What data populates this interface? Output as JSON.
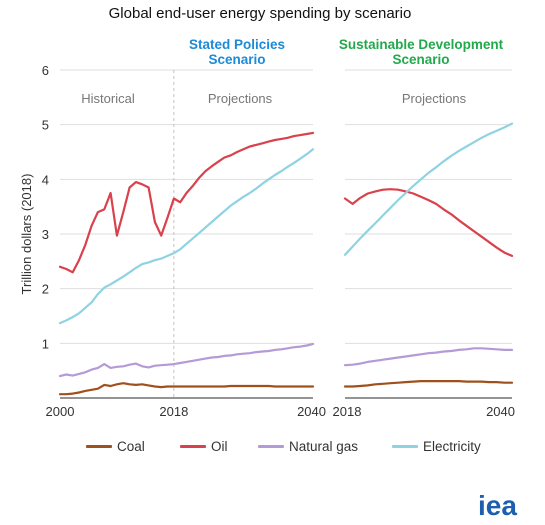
{
  "title": "Global end-user energy spending by scenario",
  "logo_text": "iea",
  "colors": {
    "coal": "#a0501c",
    "oil": "#d9414c",
    "natural_gas": "#b49ad6",
    "electricity": "#8fd3e3",
    "stated_policies": "#1c8ad6",
    "sustainable_development": "#21a94b",
    "logo": "#1d5fae"
  },
  "chart_data": [
    {
      "type": "line",
      "title": "Stated Policies Scenario",
      "ylabel": "Trillion dollars (2018)",
      "xlabel": "",
      "x_ticks": [
        "2000",
        "2018",
        "2040"
      ],
      "y_ticks": [
        "1",
        "2",
        "3",
        "4",
        "5",
        "6"
      ],
      "ylim": [
        0,
        6
      ],
      "xlim": [
        2000,
        2040
      ],
      "grid": "horizontal",
      "annotations": [
        "Historical",
        "Projections"
      ],
      "divider_x": 2018,
      "series": [
        {
          "name": "Coal",
          "x": [
            2000,
            2001,
            2002,
            2003,
            2004,
            2005,
            2006,
            2007,
            2008,
            2009,
            2010,
            2011,
            2012,
            2013,
            2014,
            2015,
            2016,
            2017,
            2018,
            2019,
            2020,
            2021,
            2022,
            2023,
            2024,
            2025,
            2026,
            2027,
            2028,
            2029,
            2030,
            2031,
            2032,
            2033,
            2034,
            2035,
            2036,
            2037,
            2038,
            2039,
            2040
          ],
          "values": [
            0.07,
            0.07,
            0.08,
            0.1,
            0.13,
            0.15,
            0.17,
            0.24,
            0.22,
            0.25,
            0.27,
            0.25,
            0.24,
            0.25,
            0.23,
            0.21,
            0.2,
            0.21,
            0.21,
            0.21,
            0.21,
            0.21,
            0.21,
            0.21,
            0.21,
            0.21,
            0.21,
            0.22,
            0.22,
            0.22,
            0.22,
            0.22,
            0.22,
            0.22,
            0.21,
            0.21,
            0.21,
            0.21,
            0.21,
            0.21,
            0.21
          ]
        },
        {
          "name": "Oil",
          "x": [
            2000,
            2001,
            2002,
            2003,
            2004,
            2005,
            2006,
            2007,
            2008,
            2009,
            2010,
            2011,
            2012,
            2013,
            2014,
            2015,
            2016,
            2017,
            2018,
            2019,
            2020,
            2021,
            2022,
            2023,
            2024,
            2025,
            2026,
            2027,
            2028,
            2029,
            2030,
            2031,
            2032,
            2033,
            2034,
            2035,
            2036,
            2037,
            2038,
            2039,
            2040
          ],
          "values": [
            2.4,
            2.36,
            2.3,
            2.52,
            2.8,
            3.15,
            3.4,
            3.45,
            3.75,
            2.97,
            3.4,
            3.85,
            3.95,
            3.91,
            3.85,
            3.22,
            2.97,
            3.3,
            3.65,
            3.58,
            3.75,
            3.88,
            4.03,
            4.15,
            4.24,
            4.32,
            4.4,
            4.44,
            4.5,
            4.55,
            4.6,
            4.63,
            4.66,
            4.69,
            4.72,
            4.74,
            4.76,
            4.79,
            4.81,
            4.83,
            4.85
          ]
        },
        {
          "name": "Natural gas",
          "x": [
            2000,
            2001,
            2002,
            2003,
            2004,
            2005,
            2006,
            2007,
            2008,
            2009,
            2010,
            2011,
            2012,
            2013,
            2014,
            2015,
            2016,
            2017,
            2018,
            2019,
            2020,
            2021,
            2022,
            2023,
            2024,
            2025,
            2026,
            2027,
            2028,
            2029,
            2030,
            2031,
            2032,
            2033,
            2034,
            2035,
            2036,
            2037,
            2038,
            2039,
            2040
          ],
          "values": [
            0.4,
            0.43,
            0.41,
            0.44,
            0.47,
            0.52,
            0.55,
            0.62,
            0.55,
            0.57,
            0.58,
            0.61,
            0.63,
            0.58,
            0.56,
            0.59,
            0.6,
            0.61,
            0.62,
            0.64,
            0.66,
            0.68,
            0.7,
            0.72,
            0.74,
            0.75,
            0.77,
            0.78,
            0.8,
            0.81,
            0.82,
            0.84,
            0.85,
            0.86,
            0.88,
            0.89,
            0.91,
            0.93,
            0.94,
            0.96,
            0.99
          ]
        },
        {
          "name": "Electricity",
          "x": [
            2000,
            2001,
            2002,
            2003,
            2004,
            2005,
            2006,
            2007,
            2008,
            2009,
            2010,
            2011,
            2012,
            2013,
            2014,
            2015,
            2016,
            2017,
            2018,
            2019,
            2020,
            2021,
            2022,
            2023,
            2024,
            2025,
            2026,
            2027,
            2028,
            2029,
            2030,
            2031,
            2032,
            2033,
            2034,
            2035,
            2036,
            2037,
            2038,
            2039,
            2040
          ],
          "values": [
            1.37,
            1.42,
            1.48,
            1.55,
            1.65,
            1.75,
            1.9,
            2.02,
            2.08,
            2.15,
            2.22,
            2.3,
            2.38,
            2.45,
            2.48,
            2.52,
            2.55,
            2.6,
            2.65,
            2.72,
            2.82,
            2.92,
            3.02,
            3.12,
            3.22,
            3.32,
            3.42,
            3.52,
            3.6,
            3.68,
            3.75,
            3.83,
            3.92,
            4.0,
            4.08,
            4.15,
            4.23,
            4.3,
            4.38,
            4.46,
            4.55
          ]
        }
      ]
    },
    {
      "type": "line",
      "title": "Sustainable Development Scenario",
      "xlabel": "",
      "x_ticks": [
        "2018",
        "2040"
      ],
      "ylim": [
        0,
        6
      ],
      "xlim": [
        2018,
        2040
      ],
      "grid": "horizontal",
      "annotations": [
        "Projections"
      ],
      "series": [
        {
          "name": "Coal",
          "x": [
            2018,
            2019,
            2020,
            2021,
            2022,
            2023,
            2024,
            2025,
            2026,
            2027,
            2028,
            2029,
            2030,
            2031,
            2032,
            2033,
            2034,
            2035,
            2036,
            2037,
            2038,
            2039,
            2040
          ],
          "values": [
            0.21,
            0.21,
            0.22,
            0.23,
            0.25,
            0.26,
            0.27,
            0.28,
            0.29,
            0.3,
            0.31,
            0.31,
            0.31,
            0.31,
            0.31,
            0.31,
            0.3,
            0.3,
            0.3,
            0.29,
            0.29,
            0.28,
            0.28
          ]
        },
        {
          "name": "Oil",
          "x": [
            2018,
            2019,
            2020,
            2021,
            2022,
            2023,
            2024,
            2025,
            2026,
            2027,
            2028,
            2029,
            2030,
            2031,
            2032,
            2033,
            2034,
            2035,
            2036,
            2037,
            2038,
            2039,
            2040
          ],
          "values": [
            3.65,
            3.55,
            3.66,
            3.74,
            3.78,
            3.81,
            3.82,
            3.81,
            3.78,
            3.74,
            3.68,
            3.62,
            3.55,
            3.45,
            3.36,
            3.25,
            3.15,
            3.05,
            2.95,
            2.85,
            2.75,
            2.66,
            2.6
          ]
        },
        {
          "name": "Natural gas",
          "x": [
            2018,
            2019,
            2020,
            2021,
            2022,
            2023,
            2024,
            2025,
            2026,
            2027,
            2028,
            2029,
            2030,
            2031,
            2032,
            2033,
            2034,
            2035,
            2036,
            2037,
            2038,
            2039,
            2040
          ],
          "values": [
            0.6,
            0.61,
            0.63,
            0.66,
            0.68,
            0.7,
            0.72,
            0.74,
            0.76,
            0.78,
            0.8,
            0.82,
            0.83,
            0.85,
            0.86,
            0.88,
            0.89,
            0.91,
            0.91,
            0.9,
            0.89,
            0.88,
            0.88
          ]
        },
        {
          "name": "Electricity",
          "x": [
            2018,
            2019,
            2020,
            2021,
            2022,
            2023,
            2024,
            2025,
            2026,
            2027,
            2028,
            2029,
            2030,
            2031,
            2032,
            2033,
            2034,
            2035,
            2036,
            2037,
            2038,
            2039,
            2040
          ],
          "values": [
            2.62,
            2.77,
            2.92,
            3.06,
            3.2,
            3.34,
            3.48,
            3.62,
            3.75,
            3.88,
            4.0,
            4.12,
            4.22,
            4.33,
            4.43,
            4.52,
            4.6,
            4.68,
            4.76,
            4.83,
            4.89,
            4.95,
            5.02
          ]
        }
      ]
    }
  ]
}
